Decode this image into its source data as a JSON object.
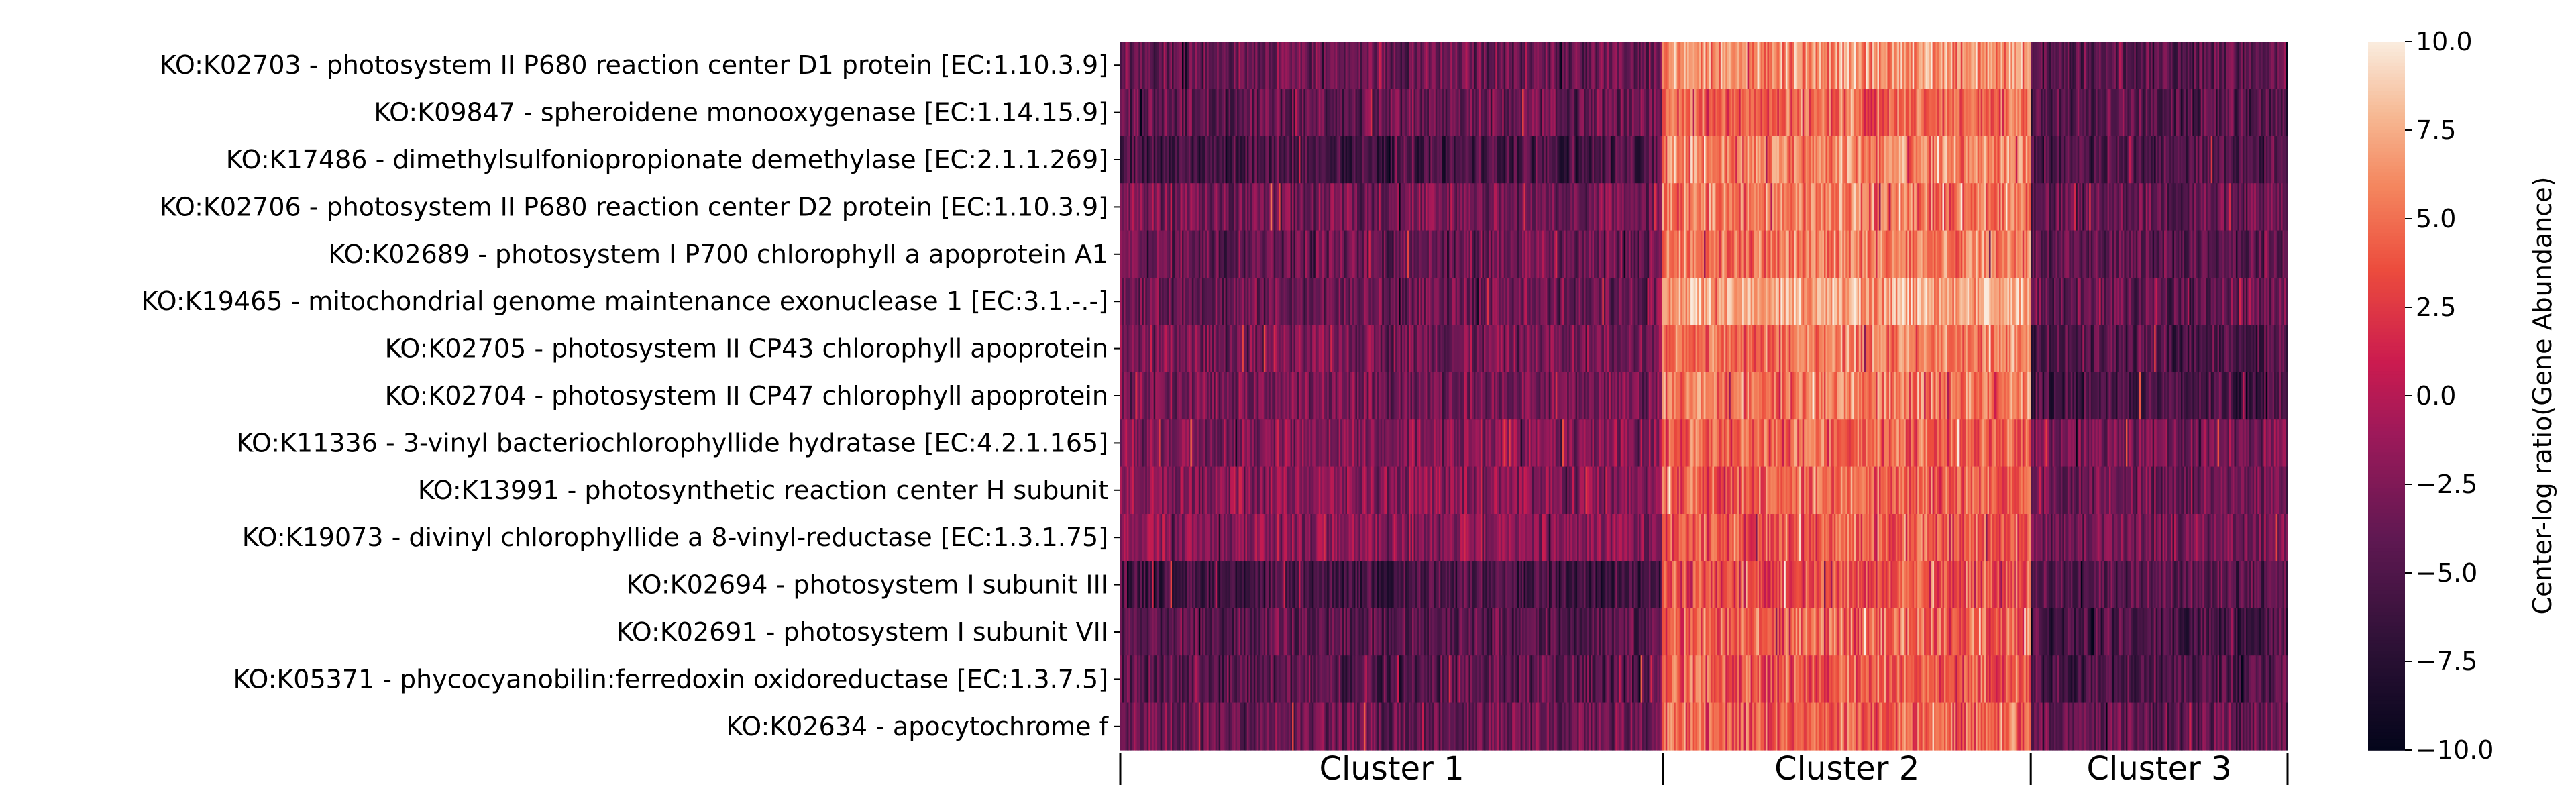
{
  "chart_data": {
    "type": "heatmap",
    "title": "",
    "xlabel": "",
    "ylabel": "",
    "rows": [
      "KO:K02703 - photosystem II P680 reaction center D1 protein [EC:1.10.3.9]",
      "KO:K09847 - spheroidene monooxygenase [EC:1.14.15.9]",
      "KO:K17486 - dimethylsulfoniopropionate demethylase [EC:2.1.1.269]",
      "KO:K02706 - photosystem II P680 reaction center D2 protein [EC:1.10.3.9]",
      "KO:K02689 - photosystem I P700 chlorophyll a apoprotein A1",
      "KO:K19465 - mitochondrial genome maintenance exonuclease 1 [EC:3.1.-.-]",
      "KO:K02705 - photosystem II CP43 chlorophyll apoprotein",
      "KO:K02704 - photosystem II CP47 chlorophyll apoprotein",
      "KO:K11336 - 3-vinyl bacteriochlorophyllide hydratase [EC:4.2.1.165]",
      "KO:K13991 - photosynthetic reaction center H subunit",
      "KO:K19073 - divinyl chlorophyllide a 8-vinyl-reductase [EC:1.3.1.75]",
      "KO:K02694 - photosystem I subunit III",
      "KO:K02691 - photosystem I subunit VII",
      "KO:K05371 - phycocyanobilin:ferredoxin oxidoreductase [EC:1.3.7.5]",
      "KO:K02634 - apocytochrome f"
    ],
    "column_groups": [
      {
        "name": "Cluster 1",
        "fraction": 0.465
      },
      {
        "name": "Cluster 2",
        "fraction": 0.315
      },
      {
        "name": "Cluster 3",
        "fraction": 0.22
      }
    ],
    "row_group_means": [
      [
        -3.5,
        6.5,
        -4.5
      ],
      [
        -4.0,
        4.5,
        -5.0
      ],
      [
        -5.5,
        6.0,
        -5.0
      ],
      [
        -3.0,
        5.5,
        -4.0
      ],
      [
        -3.5,
        5.5,
        -4.5
      ],
      [
        -3.5,
        7.5,
        -4.0
      ],
      [
        -3.0,
        5.5,
        -5.0
      ],
      [
        -3.0,
        5.5,
        -5.5
      ],
      [
        -2.5,
        4.5,
        -3.0
      ],
      [
        -2.0,
        4.5,
        -3.5
      ],
      [
        -2.0,
        4.0,
        -3.0
      ],
      [
        -5.5,
        3.5,
        -4.5
      ],
      [
        -4.5,
        4.5,
        -5.5
      ],
      [
        -4.5,
        4.0,
        -5.0
      ],
      [
        -3.5,
        4.5,
        -4.0
      ]
    ],
    "colorbar": {
      "label": "Center-log ratio(Gene Abundance)",
      "min": -10,
      "max": 10,
      "ticks": [
        10,
        7.5,
        5,
        2.5,
        0,
        -2.5,
        -5,
        -7.5,
        -10
      ],
      "tick_labels": [
        "10.0",
        "7.5",
        "5.0",
        "2.5",
        "0.0",
        "−2.5",
        "−5.0",
        "−7.5",
        "−10.0"
      ],
      "colormap": "rocket"
    },
    "grid": false
  }
}
